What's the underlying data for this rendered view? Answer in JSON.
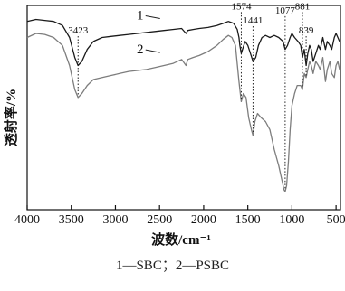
{
  "chart_data": {
    "type": "line",
    "xlabel": "波数/cm⁻¹",
    "ylabel": "透射率/%",
    "x_ticks": [
      4000,
      3500,
      3000,
      2500,
      2000,
      1500,
      1000,
      500
    ],
    "xlim": [
      4000,
      450
    ],
    "x_reversed": true,
    "grid": false,
    "y_ticks_shown": false,
    "series": [
      {
        "name": "1",
        "color": "#1a1a1a",
        "x": [
          4000,
          3900,
          3800,
          3700,
          3600,
          3520,
          3460,
          3423,
          3380,
          3320,
          3250,
          3150,
          3050,
          2950,
          2850,
          2750,
          2650,
          2550,
          2450,
          2350,
          2250,
          2200,
          2180,
          2120,
          2050,
          1950,
          1850,
          1780,
          1720,
          1660,
          1620,
          1600,
          1590,
          1574,
          1560,
          1530,
          1500,
          1470,
          1441,
          1410,
          1380,
          1340,
          1300,
          1250,
          1200,
          1150,
          1100,
          1077,
          1050,
          1020,
          1000,
          970,
          930,
          900,
          881,
          860,
          839,
          820,
          800,
          780,
          760,
          730,
          700,
          680,
          650,
          620,
          600,
          570,
          550,
          520,
          500,
          480,
          460
        ],
        "y": [
          94,
          95,
          94.5,
          94,
          92,
          86,
          76,
          72,
          74,
          80,
          84,
          86,
          86.5,
          87,
          87.5,
          88,
          88.5,
          89,
          89.5,
          90,
          90.5,
          88,
          89.5,
          90,
          90.5,
          91,
          92,
          93,
          94,
          93,
          90,
          86,
          82,
          78,
          80,
          84,
          82,
          78,
          74,
          76,
          82,
          86,
          87,
          86,
          87,
          86,
          84,
          80,
          82,
          86,
          88,
          86,
          84,
          82,
          76,
          80,
          72,
          78,
          82,
          80,
          74,
          78,
          82,
          80,
          86,
          80,
          84,
          82,
          80,
          86,
          88,
          86,
          84
        ]
      },
      {
        "name": "2",
        "color": "#7d7d7d",
        "x": [
          4000,
          3900,
          3800,
          3700,
          3600,
          3520,
          3460,
          3423,
          3380,
          3320,
          3250,
          3150,
          3050,
          2950,
          2850,
          2750,
          2650,
          2550,
          2450,
          2350,
          2250,
          2200,
          2180,
          2120,
          2050,
          1950,
          1850,
          1780,
          1720,
          1680,
          1640,
          1600,
          1574,
          1550,
          1520,
          1490,
          1460,
          1441,
          1420,
          1390,
          1350,
          1300,
          1250,
          1200,
          1150,
          1110,
          1090,
          1077,
          1060,
          1040,
          1020,
          1000,
          970,
          940,
          900,
          881,
          860,
          839,
          820,
          800,
          780,
          760,
          730,
          700,
          680,
          650,
          620,
          600,
          570,
          550,
          520,
          500,
          480,
          460
        ],
        "y": [
          86,
          88,
          87.5,
          86,
          82,
          72,
          60,
          56,
          58,
          62,
          65,
          66,
          67,
          68,
          69,
          69.5,
          70,
          71,
          72,
          73,
          75,
          72,
          75,
          76,
          77,
          79,
          82,
          85,
          87,
          86,
          82,
          64,
          54,
          58,
          56,
          46,
          40,
          37,
          44,
          48,
          46,
          44,
          40,
          30,
          22,
          14,
          10,
          9,
          12,
          24,
          40,
          52,
          58,
          62,
          62,
          60,
          68,
          66,
          70,
          74,
          72,
          68,
          74,
          72,
          70,
          76,
          64,
          70,
          74,
          68,
          66,
          72,
          74,
          70
        ]
      }
    ],
    "series_labels": [
      {
        "text": "1",
        "x": 2720,
        "y": 95
      },
      {
        "text": "2",
        "x": 2720,
        "y": 78
      }
    ],
    "peak_labels": [
      {
        "text": "3423",
        "x": 3423,
        "label_y": 88
      },
      {
        "text": "1574",
        "x": 1574,
        "label_y": 100
      },
      {
        "text": "1441",
        "x": 1441,
        "label_y": 93
      },
      {
        "text": "1077",
        "x": 1077,
        "label_y": 98
      },
      {
        "text": "881",
        "x": 881,
        "label_y": 100
      },
      {
        "text": "839",
        "x": 839,
        "label_y": 88
      }
    ]
  },
  "caption": "1—SBC；2—PSBC"
}
